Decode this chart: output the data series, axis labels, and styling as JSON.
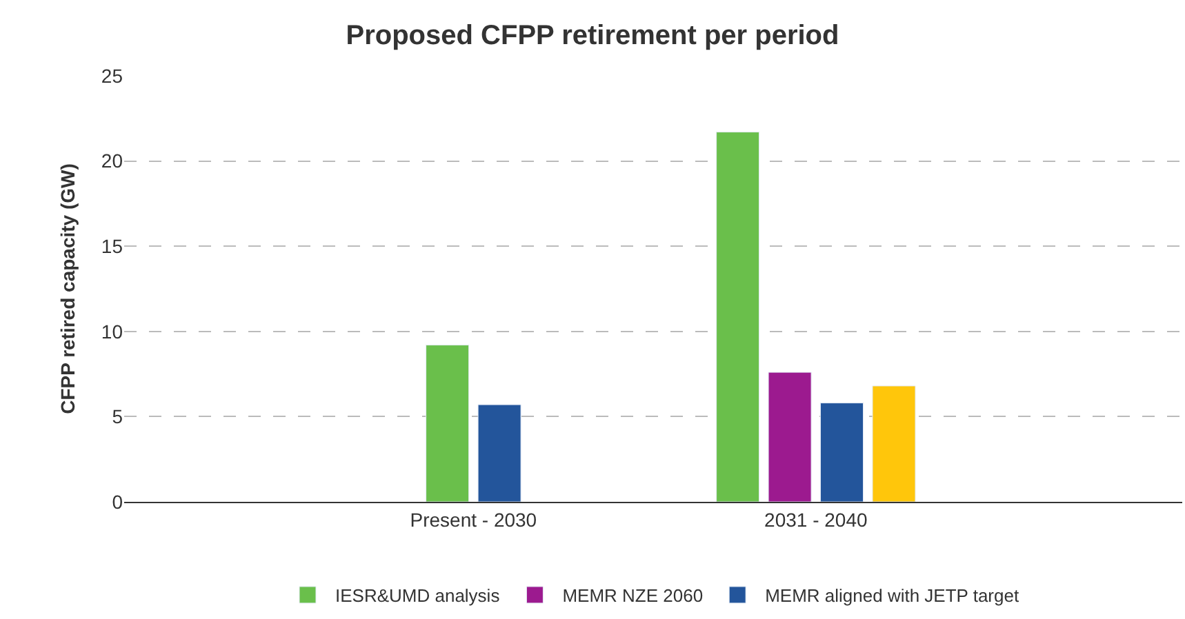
{
  "chart_data": {
    "type": "bar",
    "title": "Proposed CFPP retirement per period",
    "ylabel": "CFPP retired capacity (GW)",
    "categories": [
      "Present - 2030",
      "2031 - 2040"
    ],
    "series": [
      {
        "name": "IESR&UMD analysis",
        "color": "#6abf4b",
        "values": [
          9.2,
          21.7
        ]
      },
      {
        "name": "MEMR NZE 2060",
        "color": "#9c1a8f",
        "values": [
          null,
          7.6
        ]
      },
      {
        "name": "MEMR aligned with JETP target",
        "color": "#23559b",
        "values": [
          5.7,
          5.8
        ]
      },
      {
        "color": "#ffc60b",
        "values": [
          null,
          6.8
        ]
      }
    ],
    "ylim": [
      0,
      25
    ],
    "yticks": [
      0,
      5,
      10,
      15,
      20,
      25
    ],
    "grid": "y",
    "legend": "bottom"
  }
}
